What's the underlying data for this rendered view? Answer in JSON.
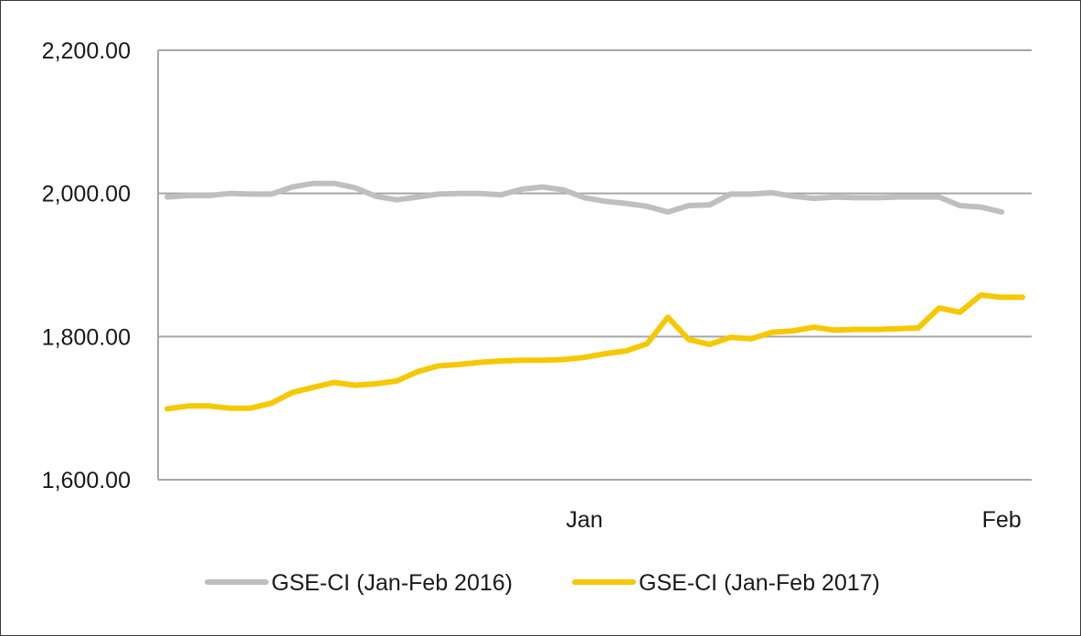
{
  "chart_data": {
    "type": "line",
    "title": "",
    "xlabel": "",
    "ylabel": "",
    "ylim": [
      1600,
      2200
    ],
    "y_ticks": [
      "1,600.00",
      "1,800.00",
      "2,000.00",
      "2,200.00"
    ],
    "y_tick_values": [
      1600,
      1800,
      2000,
      2200
    ],
    "x_ticks": [
      {
        "label": "Jan",
        "index": 20
      },
      {
        "label": "Feb",
        "index": 40
      }
    ],
    "grid": "horizontal",
    "legend_position": "bottom",
    "series": [
      {
        "name": "GSE-CI (Jan-Feb 2016)",
        "color": "#bfbfbf",
        "values": [
          1995,
          1997,
          1997,
          2000,
          1999,
          1999,
          2009,
          2014,
          2014,
          2008,
          1996,
          1991,
          1995,
          1999,
          2000,
          2000,
          1998,
          2006,
          2009,
          2005,
          1994,
          1989,
          1986,
          1982,
          1974,
          1983,
          1984,
          1999,
          1999,
          2001,
          1996,
          1993,
          1995,
          1994,
          1994,
          1995,
          1995,
          1995,
          1983,
          1981,
          1974
        ]
      },
      {
        "name": "GSE-CI (Jan-Feb 2017)",
        "color": "#f5c800",
        "values": [
          1699,
          1703,
          1703,
          1700,
          1700,
          1707,
          1722,
          1729,
          1736,
          1732,
          1734,
          1738,
          1751,
          1759,
          1761,
          1764,
          1766,
          1767,
          1767,
          1768,
          1771,
          1776,
          1780,
          1790,
          1827,
          1796,
          1789,
          1799,
          1797,
          1806,
          1808,
          1813,
          1809,
          1810,
          1810,
          1811,
          1812,
          1840,
          1834,
          1858,
          1855,
          1855
        ]
      }
    ]
  }
}
